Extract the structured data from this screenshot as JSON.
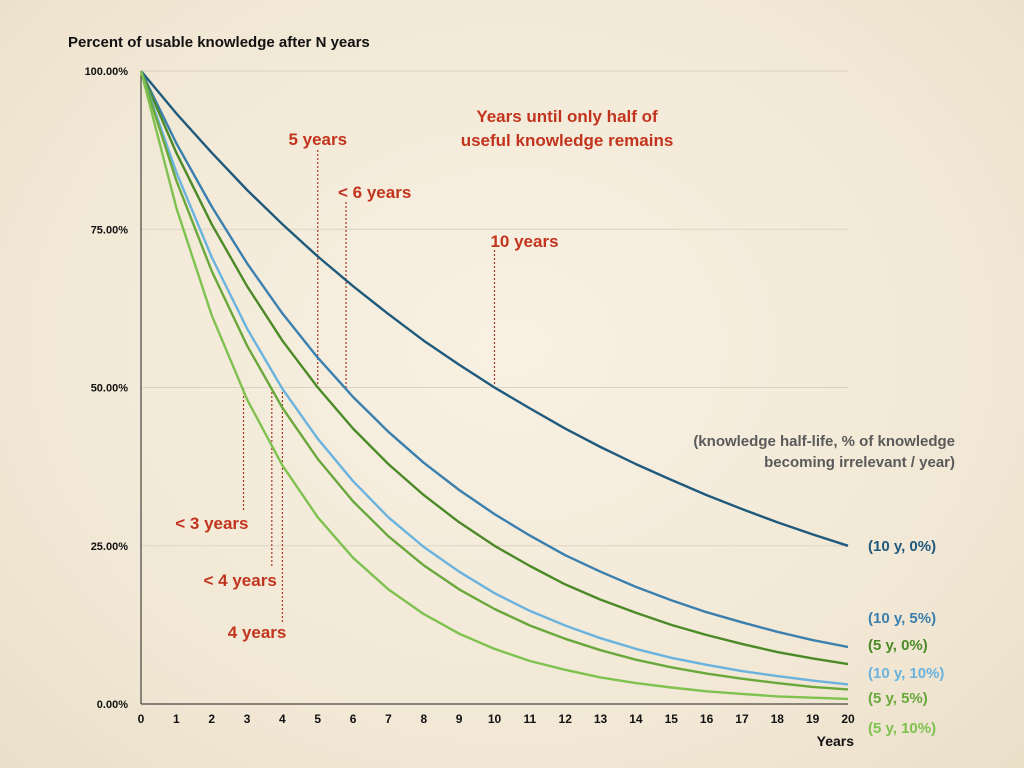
{
  "chart_data": {
    "type": "line",
    "title": "Percent of usable knowledge  after N years",
    "xlabel": "Years",
    "ylabel": "",
    "xlim": [
      0,
      20
    ],
    "ylim": [
      0,
      100
    ],
    "x": [
      0,
      1,
      2,
      3,
      4,
      5,
      6,
      7,
      8,
      9,
      10,
      11,
      12,
      13,
      14,
      15,
      16,
      17,
      18,
      19,
      20
    ],
    "x_tick_labels": [
      "0",
      "1",
      "2",
      "3",
      "4",
      "5",
      "6",
      "7",
      "8",
      "9",
      "10",
      "11",
      "12",
      "13",
      "14",
      "15",
      "16",
      "17",
      "18",
      "19",
      "20"
    ],
    "y_ticks": [
      0,
      25,
      50,
      75,
      100
    ],
    "y_tick_labels": [
      "0.00%",
      "25.00%",
      "50.00%",
      "75.00%",
      "100.00%"
    ],
    "grid": "horizontal",
    "series": [
      {
        "name": "(10 y, 0%)",
        "color": "#1f5a7d",
        "values": [
          100,
          93.3,
          87.1,
          81.2,
          75.8,
          70.7,
          66.0,
          61.6,
          57.4,
          53.6,
          50.0,
          46.7,
          43.5,
          40.6,
          37.9,
          35.4,
          33.0,
          30.8,
          28.7,
          26.8,
          25.0
        ]
      },
      {
        "name": "(10 y, 5%)",
        "color": "#3a7fae",
        "values": [
          100,
          88.6,
          78.6,
          69.6,
          61.7,
          54.7,
          48.5,
          43.0,
          38.1,
          33.8,
          30.0,
          26.6,
          23.5,
          20.9,
          18.5,
          16.4,
          14.5,
          12.9,
          11.4,
          10.1,
          9.0
        ]
      },
      {
        "name": "(5 y, 0%)",
        "color": "#4b8a26",
        "values": [
          100,
          87.1,
          75.8,
          66.0,
          57.4,
          50.0,
          43.5,
          37.9,
          33.0,
          28.7,
          25.0,
          21.8,
          18.9,
          16.5,
          14.4,
          12.5,
          10.9,
          9.5,
          8.2,
          7.2,
          6.3
        ]
      },
      {
        "name": "(10 y, 10%)",
        "color": "#6ab3de",
        "values": [
          100,
          84.0,
          70.6,
          59.3,
          49.8,
          41.9,
          35.2,
          29.5,
          24.8,
          20.9,
          17.5,
          14.7,
          12.4,
          10.4,
          8.7,
          7.3,
          6.2,
          5.2,
          4.4,
          3.7,
          3.1
        ]
      },
      {
        "name": "(5 y, 5%)",
        "color": "#6aa83c",
        "values": [
          100,
          82.7,
          68.4,
          56.6,
          46.8,
          38.7,
          32.0,
          26.5,
          21.9,
          18.1,
          15.0,
          12.4,
          10.3,
          8.5,
          7.0,
          5.8,
          4.8,
          4.0,
          3.3,
          2.7,
          2.3
        ]
      },
      {
        "name": "(5 y, 10%)",
        "color": "#7fc24f",
        "values": [
          100,
          78.4,
          61.4,
          48.1,
          37.7,
          29.5,
          23.1,
          18.1,
          14.2,
          11.1,
          8.7,
          6.8,
          5.4,
          4.2,
          3.3,
          2.6,
          2.0,
          1.6,
          1.2,
          1.0,
          0.8
        ]
      }
    ],
    "annotations": {
      "heading_line1": "Years until only half of",
      "heading_line2": "useful knowledge remains",
      "legend_note_line1": "(knowledge half-life, % of knowledge",
      "legend_note_line2": "becoming irrelevant / year)",
      "markers": [
        {
          "text": "5 years",
          "x": 5.0,
          "y": 50
        },
        {
          "text": "< 6 years",
          "x": 5.8,
          "y": 50
        },
        {
          "text": "10 years",
          "x": 10.0,
          "y": 50
        },
        {
          "text": "< 3 years",
          "x": 2.9,
          "y": 50
        },
        {
          "text": "< 4 years",
          "x": 3.7,
          "y": 50
        },
        {
          "text": "4 years",
          "x": 4.0,
          "y": 50
        }
      ]
    }
  }
}
